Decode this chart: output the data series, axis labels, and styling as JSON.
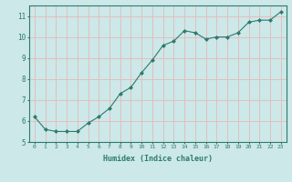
{
  "xlabel": "Humidex (Indice chaleur)",
  "x": [
    0,
    1,
    2,
    3,
    4,
    5,
    6,
    7,
    8,
    9,
    10,
    11,
    12,
    13,
    14,
    15,
    16,
    17,
    18,
    19,
    20,
    21,
    22,
    23
  ],
  "y": [
    6.2,
    5.6,
    5.5,
    5.5,
    5.5,
    5.9,
    6.2,
    6.6,
    7.3,
    7.6,
    8.3,
    8.9,
    9.6,
    9.8,
    10.3,
    10.2,
    9.9,
    10.0,
    10.0,
    10.2,
    10.7,
    10.8,
    10.8,
    11.2
  ],
  "line_color": "#2d7a6e",
  "marker": "D",
  "marker_size": 2,
  "bg_color": "#cce8e8",
  "grid_color": "#e8b8b8",
  "tick_color": "#2d7a6e",
  "label_color": "#2d7a6e",
  "xlim": [
    -0.5,
    23.5
  ],
  "ylim": [
    5.0,
    11.5
  ],
  "yticks": [
    5,
    6,
    7,
    8,
    9,
    10,
    11
  ],
  "xticks": [
    0,
    1,
    2,
    3,
    4,
    5,
    6,
    7,
    8,
    9,
    10,
    11,
    12,
    13,
    14,
    15,
    16,
    17,
    18,
    19,
    20,
    21,
    22,
    23
  ]
}
